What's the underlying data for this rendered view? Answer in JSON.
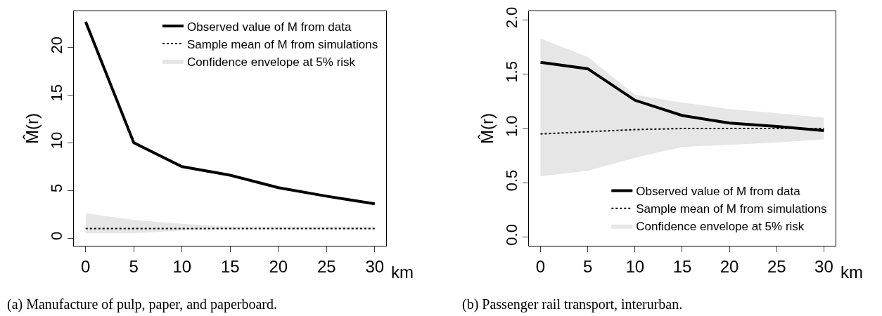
{
  "chart_data": [
    {
      "type": "line",
      "xlabel": "km",
      "ylabel": "M̂(r)",
      "annotations": [
        "(a) Manufacture of pulp, paper, and paperboard."
      ],
      "x": [
        0,
        5,
        10,
        15,
        20,
        25,
        30
      ],
      "xlim": [
        -1.2,
        31.2
      ],
      "xticks": [
        0,
        5,
        10,
        15,
        20,
        25,
        30
      ],
      "ylim": [
        -0.8,
        23.8
      ],
      "yticks": [
        0,
        5,
        10,
        15,
        20
      ],
      "grid": false,
      "legend": "top right",
      "series": [
        {
          "name": "Observed value of M from data",
          "color": "#000000",
          "line_style": "solid",
          "values": [
            22.7,
            10.0,
            7.5,
            6.6,
            5.3,
            4.4,
            3.6
          ]
        },
        {
          "name": "Sample mean of M from simulations",
          "color": "#000000",
          "line_style": "dotted",
          "values": [
            1.0,
            1.0,
            1.0,
            1.0,
            1.0,
            1.0,
            1.0
          ],
          "lower": [
            0.5,
            0.5,
            0.8,
            1.0,
            1.0,
            1.0,
            1.0
          ],
          "upper": [
            2.6,
            1.9,
            1.5,
            1.2,
            1.2,
            1.2,
            1.2
          ]
        },
        {
          "name": "Confidence envelope at 5% risk",
          "type": "area",
          "color": "#e6e6e6",
          "values": [
            null,
            null,
            null,
            null,
            null,
            null,
            null
          ]
        }
      ]
    },
    {
      "type": "line",
      "xlabel": "km",
      "ylabel": "M̂(r)",
      "annotations": [
        "(b) Passenger rail transport, interurban."
      ],
      "x": [
        0,
        5,
        10,
        15,
        20,
        25,
        30
      ],
      "xlim": [
        -1.2,
        31.2
      ],
      "xticks": [
        0,
        5,
        10,
        15,
        20,
        25,
        30
      ],
      "ylim": [
        -0.08,
        2.08
      ],
      "yticks": [
        {
          "value": 0,
          "label": "0.0"
        },
        0.5,
        {
          "value": 1,
          "label": "1.0"
        },
        1.5,
        {
          "value": 2,
          "label": "2.0"
        }
      ],
      "grid": false,
      "legend": "bottom right",
      "series": [
        {
          "name": "Observed value of M from data",
          "color": "#000000",
          "line_style": "solid",
          "values": [
            1.61,
            1.55,
            1.26,
            1.12,
            1.05,
            1.02,
            0.98
          ]
        },
        {
          "name": "Sample mean of M from simulations",
          "color": "#000000",
          "line_style": "dotted",
          "values": [
            0.95,
            0.97,
            0.99,
            1.0,
            1.0,
            1.0,
            1.0
          ],
          "lower": [
            0.56,
            0.61,
            0.73,
            0.83,
            0.85,
            0.87,
            0.9
          ],
          "upper": [
            1.83,
            1.66,
            1.31,
            1.24,
            1.18,
            1.14,
            1.1
          ]
        },
        {
          "name": "Confidence envelope at 5% risk",
          "type": "area",
          "color": "#e6e6e6",
          "values": [
            null,
            null,
            null,
            null,
            null,
            null,
            null
          ]
        }
      ]
    }
  ]
}
